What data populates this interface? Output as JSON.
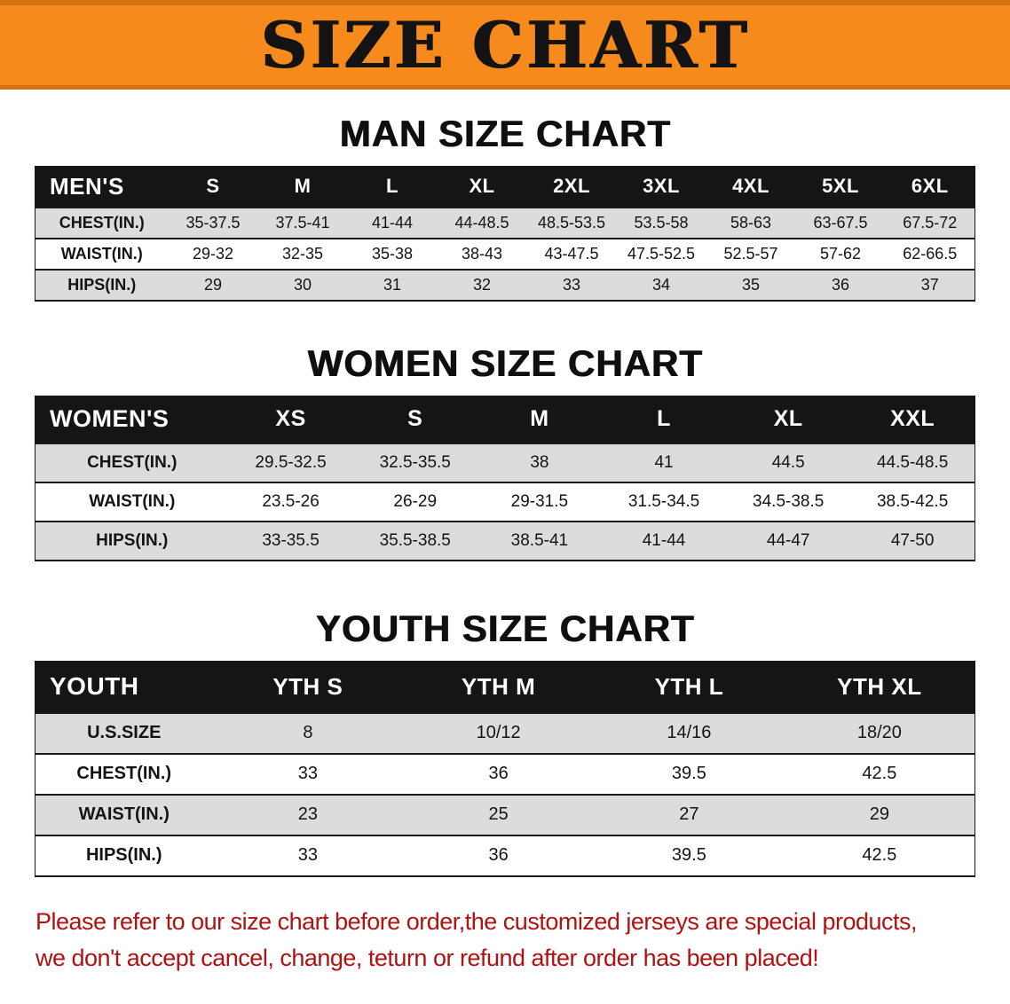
{
  "banner": {
    "title": "SIZE CHART"
  },
  "sections": {
    "men": {
      "heading": "MAN SIZE CHART",
      "table": {
        "header": [
          "MEN'S",
          "S",
          "M",
          "L",
          "XL",
          "2XL",
          "3XL",
          "4XL",
          "5XL",
          "6XL"
        ],
        "rows": [
          [
            "CHEST(IN.)",
            "35-37.5",
            "37.5-41",
            "41-44",
            "44-48.5",
            "48.5-53.5",
            "53.5-58",
            "58-63",
            "63-67.5",
            "67.5-72"
          ],
          [
            "WAIST(IN.)",
            "29-32",
            "32-35",
            "35-38",
            "38-43",
            "43-47.5",
            "47.5-52.5",
            "52.5-57",
            "57-62",
            "62-66.5"
          ],
          [
            "HIPS(IN.)",
            "29",
            "30",
            "31",
            "32",
            "33",
            "34",
            "35",
            "36",
            "37"
          ]
        ]
      }
    },
    "women": {
      "heading": "WOMEN SIZE CHART",
      "table": {
        "header": [
          "WOMEN'S",
          "XS",
          "S",
          "M",
          "L",
          "XL",
          "XXL"
        ],
        "rows": [
          [
            "CHEST(IN.)",
            "29.5-32.5",
            "32.5-35.5",
            "38",
            "41",
            "44.5",
            "44.5-48.5"
          ],
          [
            "WAIST(IN.)",
            "23.5-26",
            "26-29",
            "29-31.5",
            "31.5-34.5",
            "34.5-38.5",
            "38.5-42.5"
          ],
          [
            "HIPS(IN.)",
            "33-35.5",
            "35.5-38.5",
            "38.5-41",
            "41-44",
            "44-47",
            "47-50"
          ]
        ]
      }
    },
    "youth": {
      "heading": "YOUTH SIZE CHART",
      "table": {
        "header": [
          "YOUTH",
          "YTH S",
          "YTH M",
          "YTH L",
          "YTH XL"
        ],
        "rows": [
          [
            "U.S.SIZE",
            "8",
            "10/12",
            "14/16",
            "18/20"
          ],
          [
            "CHEST(IN.)",
            "33",
            "36",
            "39.5",
            "42.5"
          ],
          [
            "WAIST(IN.)",
            "23",
            "25",
            "27",
            "29"
          ],
          [
            "HIPS(IN.)",
            "33",
            "36",
            "39.5",
            "42.5"
          ]
        ]
      }
    }
  },
  "footer": {
    "line1": "Please refer to our size chart before order,the customized jerseys are special products,",
    "line2": "we don't accept cancel, change, teturn or refund after order has been placed!"
  },
  "colors": {
    "banner_bg": "#f68a1c",
    "table_header_bg": "#151515",
    "row_stripe": "#dcdcdc",
    "footer_text": "#b01212"
  }
}
